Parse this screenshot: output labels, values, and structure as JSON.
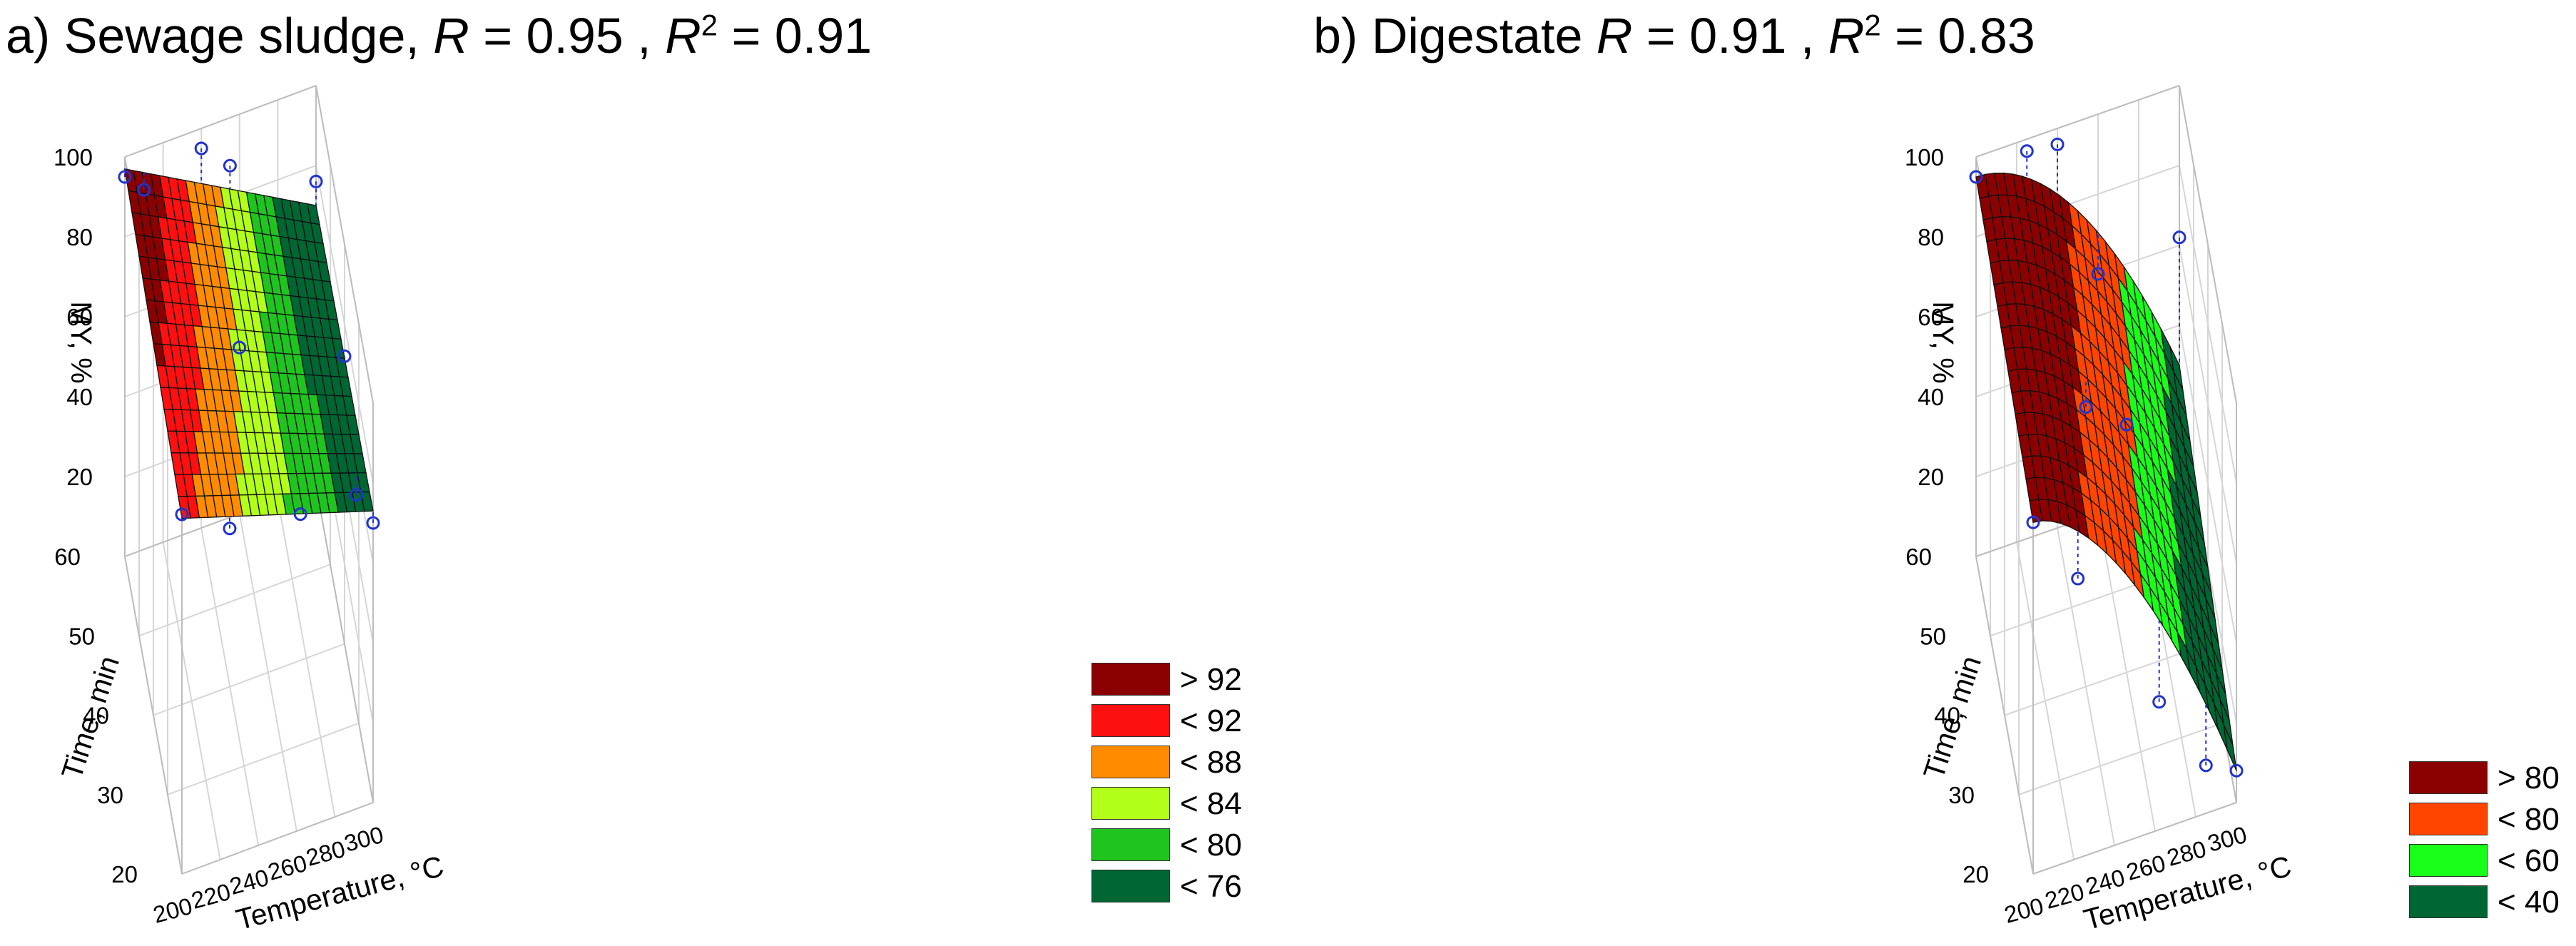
{
  "chart_data": [
    {
      "type": "surface3d",
      "panel": "a",
      "title": {
        "prefix": "a) Sewage sludge, ",
        "r_symbol": "R",
        "r_text": " = 0.95 , ",
        "r2_symbol": "R",
        "r2_exp": "2",
        "r2_text": " = 0.91"
      },
      "xlabel": "Temperature, °C",
      "ylabel": "Time, min",
      "zlabel": "MY, %",
      "x_ticks": [
        "200",
        "220",
        "240",
        "260",
        "280",
        "300"
      ],
      "y_ticks": [
        "20",
        "30",
        "40",
        "50",
        "60"
      ],
      "z_ticks": [
        "20",
        "40",
        "60",
        "80",
        "100"
      ],
      "xlim": [
        200,
        300
      ],
      "ylim": [
        20,
        60
      ],
      "zlim": [
        0,
        100
      ],
      "model": "linear",
      "corner_values": {
        "t200_m20": 89,
        "t300_m20": 73,
        "t200_m60": 97,
        "t300_m60": 70
      },
      "observed_points": [
        {
          "t": 200,
          "m": 60,
          "my": 95
        },
        {
          "t": 200,
          "m": 20,
          "my": 90
        },
        {
          "t": 210,
          "m": 60,
          "my": 90
        },
        {
          "t": 225,
          "m": 20,
          "my": 82
        },
        {
          "t": 240,
          "m": 60,
          "my": 95
        },
        {
          "t": 255,
          "m": 60,
          "my": 88
        },
        {
          "t": 262,
          "m": 20,
          "my": 79
        },
        {
          "t": 245,
          "m": 40,
          "my": 84
        },
        {
          "t": 300,
          "m": 60,
          "my": 76
        },
        {
          "t": 300,
          "m": 40,
          "my": 72
        },
        {
          "t": 300,
          "m": 20,
          "my": 70
        },
        {
          "t": 295,
          "m": 25,
          "my": 68
        }
      ],
      "legend": [
        {
          "label": "> 92",
          "color": "#8b0000"
        },
        {
          "label": "< 92",
          "color": "#ff1010"
        },
        {
          "label": "< 88",
          "color": "#ff8c00"
        },
        {
          "label": "< 84",
          "color": "#b2ff1a"
        },
        {
          "label": "< 80",
          "color": "#1fc41f"
        },
        {
          "label": "< 76",
          "color": "#006633"
        }
      ],
      "thresholds": [
        92,
        88,
        84,
        80,
        76
      ]
    },
    {
      "type": "surface3d",
      "panel": "b",
      "title": {
        "prefix": "b) Digestate ",
        "r_symbol": "R",
        "r_text": " = 0.91 , ",
        "r2_symbol": "R",
        "r2_exp": "2",
        "r2_text": " = 0.83"
      },
      "xlabel": "Temperature, °C",
      "ylabel": "Time, min",
      "zlabel": "MY, %",
      "x_ticks": [
        "200",
        "220",
        "240",
        "260",
        "280",
        "300"
      ],
      "y_ticks": [
        "20",
        "30",
        "40",
        "50",
        "60"
      ],
      "z_ticks": [
        "20",
        "40",
        "60",
        "80",
        "100"
      ],
      "xlim": [
        200,
        300
      ],
      "ylim": [
        20,
        60
      ],
      "zlim": [
        0,
        100
      ],
      "model": "quadratic",
      "corner_values": {
        "t200_m20": 88,
        "t300_m20": 8,
        "t200_m60": 95,
        "t300_m60": 30
      },
      "observed_points": [
        {
          "t": 200,
          "m": 60,
          "my": 95
        },
        {
          "t": 200,
          "m": 20,
          "my": 88
        },
        {
          "t": 225,
          "m": 60,
          "my": 97
        },
        {
          "t": 240,
          "m": 60,
          "my": 96
        },
        {
          "t": 222,
          "m": 20,
          "my": 70
        },
        {
          "t": 240,
          "m": 40,
          "my": 70
        },
        {
          "t": 260,
          "m": 40,
          "my": 62
        },
        {
          "t": 260,
          "m": 60,
          "my": 60
        },
        {
          "t": 262,
          "m": 20,
          "my": 32
        },
        {
          "t": 300,
          "m": 60,
          "my": 62
        },
        {
          "t": 285,
          "m": 20,
          "my": 12
        },
        {
          "t": 300,
          "m": 20,
          "my": 8
        }
      ],
      "legend": [
        {
          "label": "> 80",
          "color": "#8b0000"
        },
        {
          "label": "< 80",
          "color": "#ff4500"
        },
        {
          "label": "< 60",
          "color": "#1aff1a"
        },
        {
          "label": "< 40",
          "color": "#006633"
        }
      ],
      "thresholds": [
        80,
        60,
        40
      ]
    }
  ]
}
